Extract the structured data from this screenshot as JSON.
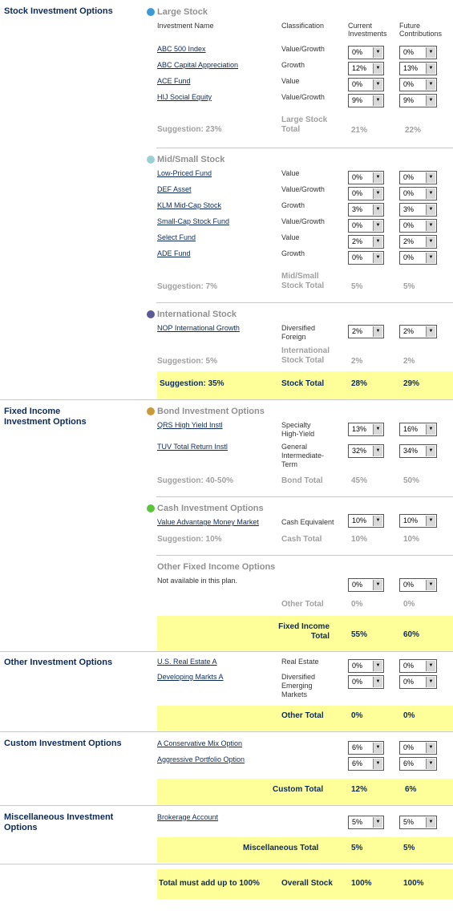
{
  "categories": {
    "stock": "Stock Investment Options",
    "fixed_income_l1": "Fixed Income",
    "fixed_income_l2": "Investment Options",
    "other": "Other Investment Options",
    "custom": "Custom Investment Options",
    "misc_l1": "Miscellaneous Investment",
    "misc_l2": "Options"
  },
  "colors": {
    "large": "#3b9ad8",
    "mid": "#9ccfd4",
    "intl": "#5b5b96",
    "bond": "#c89a3a",
    "cash": "#5cc43c",
    "yellow": "#ffff99"
  },
  "headers": {
    "investment_name": "Investment Name",
    "classification": "Classification",
    "current_l1": "Current",
    "current_l2": "Investments",
    "future_l1": "Future",
    "future_l2": "Contributions"
  },
  "large": {
    "title": "Large Stock",
    "funds": [
      {
        "name": "ABC 500 Index",
        "cls": "Value/Growth",
        "cur": "0%",
        "fut": "0%"
      },
      {
        "name": "ABC Capital Appreciation",
        "cls": "Growth",
        "cur": "12%",
        "fut": "13%"
      },
      {
        "name": "ACE Fund",
        "cls": "Value",
        "cur": "0%",
        "fut": "0%"
      },
      {
        "name": "HIJ Social Equity",
        "cls": " Value/Growth",
        "cur": "9%",
        "fut": "9%"
      }
    ],
    "suggestion": "Suggestion: 23%",
    "total_l1": "Large Stock",
    "total_l2": "Total",
    "cur_total": "21%",
    "fut_total": "22%"
  },
  "mid": {
    "title": "Mid/Small Stock",
    "funds": [
      {
        "name": "Low-Priced Fund",
        "cls": "Value",
        "cur": "0%",
        "fut": "0%"
      },
      {
        "name": "DEF Asset",
        "cls": "Value/Growth",
        "cur": "0%",
        "fut": "0%"
      },
      {
        "name": "KLM Mid-Cap Stock",
        "cls": "Growth",
        "cur": "3%",
        "fut": "3%"
      },
      {
        "name": "Small-Cap Stock Fund",
        "cls": "Value/Growth",
        "cur": "0%",
        "fut": "0%"
      },
      {
        "name": "Select Fund",
        "cls": "Value",
        "cur": "2%",
        "fut": "2%"
      },
      {
        "name": "ADE Fund",
        "cls": "Growth",
        "cur": "0%",
        "fut": "0%"
      }
    ],
    "suggestion": "Suggestion: 7%",
    "total_l1": "Mid/Small",
    "total_l2": "Stock Total",
    "cur_total": "5%",
    "fut_total": "5%"
  },
  "intl": {
    "title": "International Stock",
    "funds": [
      {
        "name": "NOP International Growth",
        "cls_l1": "Diversified",
        "cls_l2": "Foreign",
        "cur": "2%",
        "fut": "2%"
      }
    ],
    "suggestion": "Suggestion: 5%",
    "total_l1": "International",
    "total_l2": "Stock Total",
    "cur_total": "2%",
    "fut_total": "2%"
  },
  "stock_total": {
    "suggestion": "Suggestion: 35%",
    "label": "Stock Total",
    "cur": "28%",
    "fut": "29%"
  },
  "bond": {
    "title": "Bond Investment Options",
    "funds": [
      {
        "name": "QRS High Yield Instl",
        "cls_l1": "Specialty",
        "cls_l2": "High-Yield",
        "cur": "13%",
        "fut": "16%"
      },
      {
        "name": "TUV Total Return Instl",
        "cls_l1": "General",
        "cls_l2": "Intermediate-",
        "cls_l3": "Term",
        "cur": "32%",
        "fut": "34%"
      }
    ],
    "suggestion": "Suggestion: 40-50%",
    "total": "Bond Total",
    "cur_total": "45%",
    "fut_total": "50%"
  },
  "cash": {
    "title": "Cash Investment Options",
    "funds": [
      {
        "name": "Value Advantage Money Market",
        "cls": "Cash Equivalent",
        "cur": "10%",
        "fut": "10%"
      }
    ],
    "suggestion": "Suggestion: 10%",
    "total": "Cash Total",
    "cur_total": "10%",
    "fut_total": "10%"
  },
  "other_fixed": {
    "title": "Other Fixed Income Options",
    "note": "Not available in this plan.",
    "cur": "0%",
    "fut": "0%",
    "total": "Other Total",
    "cur_total": "0%",
    "fut_total": "0%"
  },
  "fixed_total": {
    "label_l1": "Fixed Income",
    "label_l2": "Total",
    "cur": "55%",
    "fut": "60%"
  },
  "other_inv": {
    "funds": [
      {
        "name": "U.S. Real Estate A",
        "cls": "Real Estate",
        "cur": "0%",
        "fut": "0%"
      },
      {
        "name": "Developing Markts A",
        "cls_l1": "Diversified",
        "cls_l2": "Emerging",
        "cls_l3": "Markets",
        "cur": "0%",
        "fut": "0%"
      }
    ],
    "total": "Other Total",
    "cur_total": "0%",
    "fut_total": "0%"
  },
  "custom": {
    "funds": [
      {
        "name": "A Conservative Mix Option",
        "cur": "6%",
        "fut": "0%"
      },
      {
        "name": "Aggressive Portfolio Option",
        "cur": "6%",
        "fut": "6%"
      }
    ],
    "total": "Custom Total",
    "cur_total": "12%",
    "fut_total": "6%"
  },
  "misc": {
    "funds": [
      {
        "name": "Brokerage Account",
        "cur": "5%",
        "fut": "5%"
      }
    ],
    "total": "Miscellaneous Total",
    "cur_total": "5%",
    "fut_total": "5%"
  },
  "overall": {
    "note": "Total must add up to 100%",
    "label": "Overall Stock",
    "cur": "100%",
    "fut": "100%"
  }
}
